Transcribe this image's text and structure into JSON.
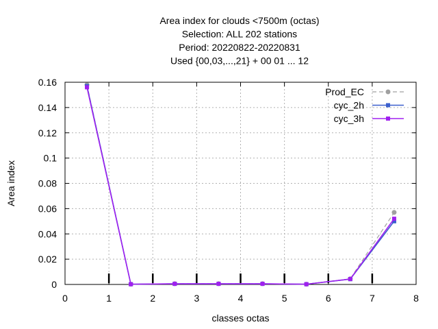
{
  "chart_data": {
    "type": "line",
    "title_lines": [
      "Area index  for clouds <7500m (octas)",
      "Selection: ALL    202 stations",
      "Period: 20220822-20220831",
      "Used {00,03,...,21} + 00 01 ... 12"
    ],
    "xlabel": "classes octas",
    "ylabel": "Area index",
    "xlim": [
      0,
      8
    ],
    "ylim": [
      0,
      0.16
    ],
    "xticks": [
      0,
      1,
      2,
      3,
      4,
      5,
      6,
      7,
      8
    ],
    "xtick_labels": [
      "0",
      "1",
      "2",
      "3",
      "4",
      "5",
      "6",
      "7",
      "8"
    ],
    "yticks": [
      0,
      0.02,
      0.04,
      0.06,
      0.08,
      0.1,
      0.12,
      0.14,
      0.16
    ],
    "ytick_labels": [
      "0",
      "0.02",
      "0.04",
      "0.06",
      "0.08",
      "0.1",
      "0.12",
      "0.14",
      "0.16"
    ],
    "grid": true,
    "legend_position": "top-right",
    "x": [
      0.5,
      1.5,
      2.5,
      3.5,
      4.5,
      5.5,
      6.5,
      7.5
    ],
    "series": [
      {
        "name": "Prod_EC",
        "color": "#a0a0a0",
        "dashed": true,
        "marker": "circle",
        "values": [
          0.158,
          0.0002,
          0.0006,
          0.0006,
          0.0006,
          0.0002,
          0.0045,
          0.057
        ]
      },
      {
        "name": "cyc_2h",
        "color": "#3a5fcd",
        "dashed": false,
        "marker": "square",
        "values": [
          0.157,
          0.0002,
          0.0005,
          0.0005,
          0.0005,
          0.0002,
          0.0042,
          0.05
        ]
      },
      {
        "name": "cyc_3h",
        "color": "#a020f0",
        "dashed": false,
        "marker": "square",
        "values": [
          0.156,
          0.0002,
          0.0005,
          0.0005,
          0.0005,
          0.0002,
          0.0043,
          0.052
        ]
      }
    ],
    "threshold_marks_x": [
      1,
      2,
      3,
      4,
      5,
      6,
      7
    ]
  }
}
